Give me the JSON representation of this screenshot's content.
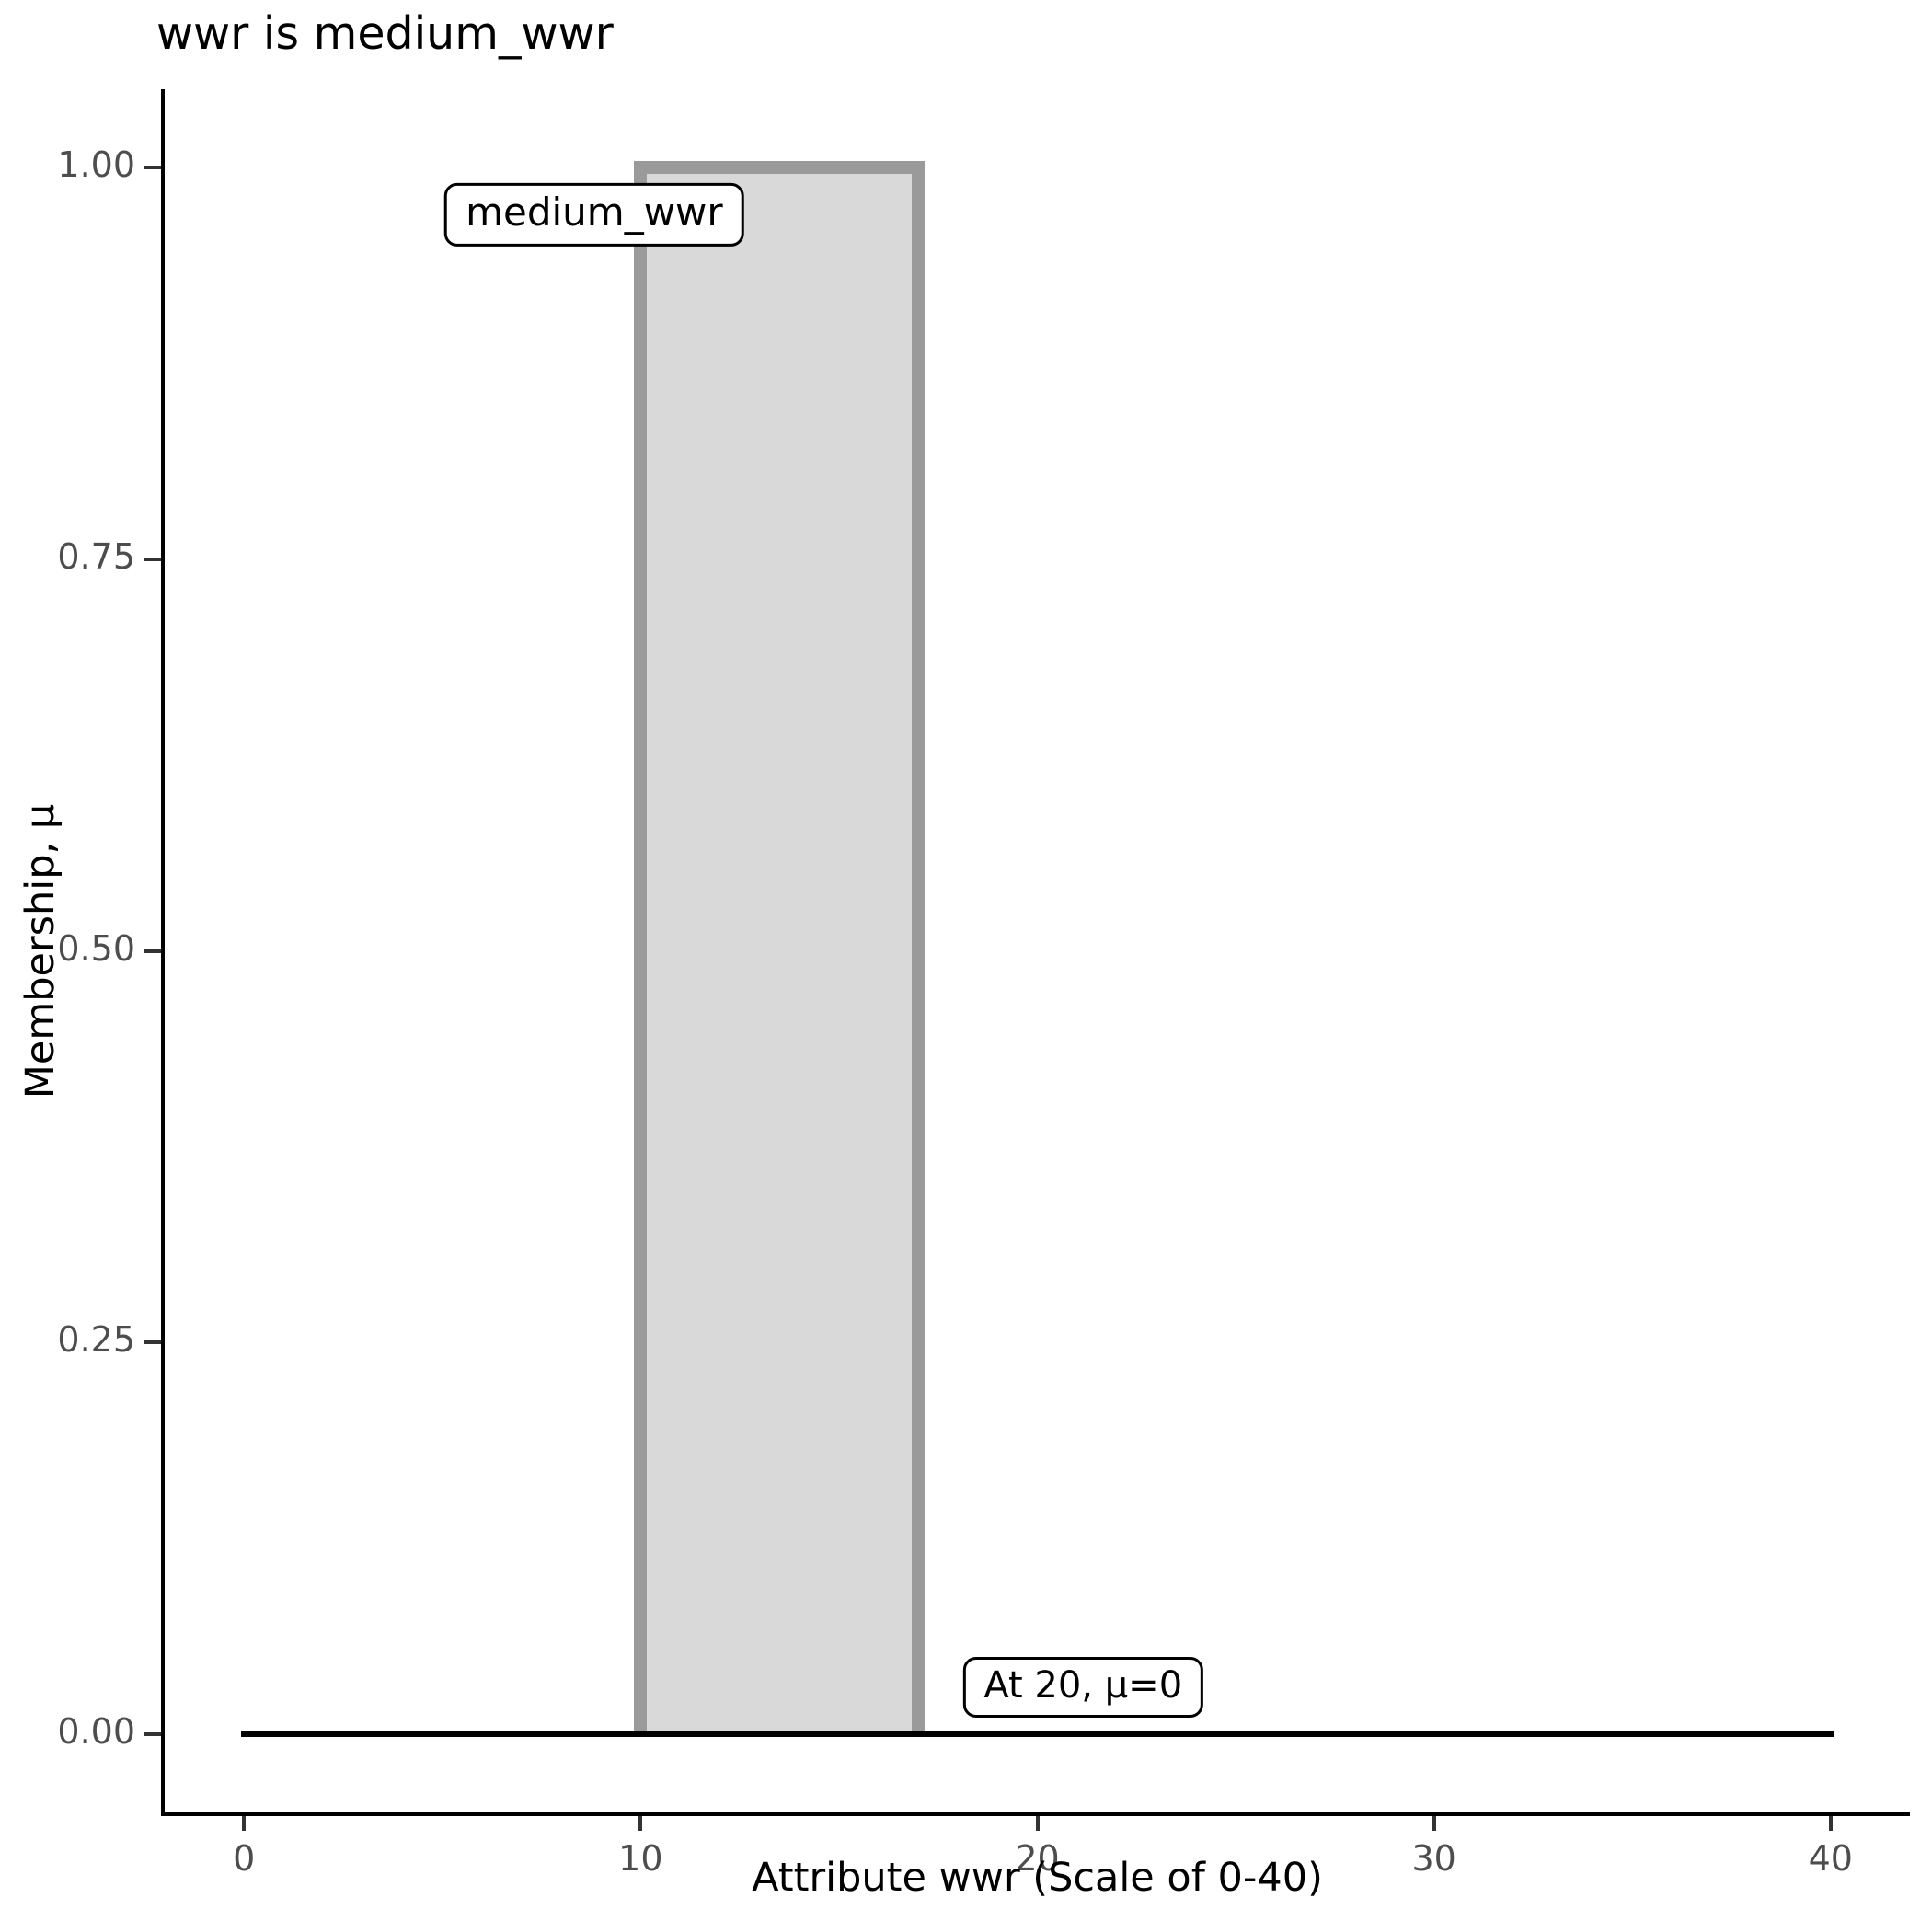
{
  "chart_data": {
    "type": "area",
    "title": "wwr is medium_wwr",
    "xlabel": "Attribute wwr (Scale of 0-40)",
    "ylabel": "Membership, μ",
    "xlim": [
      0,
      40
    ],
    "ylim": [
      0,
      1
    ],
    "x_ticks": [
      "0",
      "10",
      "20",
      "30",
      "40"
    ],
    "x_tick_values": [
      0,
      10,
      20,
      30,
      40
    ],
    "y_ticks": [
      "0.00",
      "0.25",
      "0.50",
      "0.75",
      "1.00"
    ],
    "y_tick_values": [
      0,
      0.25,
      0.5,
      0.75,
      1
    ],
    "grid": false,
    "legend": false,
    "series": [
      {
        "name": "medium_wwr",
        "kind": "rectangular_membership_function",
        "points_x_mu": [
          [
            0,
            0
          ],
          [
            10,
            0
          ],
          [
            10,
            1
          ],
          [
            17,
            1
          ],
          [
            17,
            0
          ],
          [
            40,
            0
          ]
        ],
        "rect": {
          "x_start": 10,
          "x_end": 17,
          "mu_max": 1
        },
        "fill_color": "#d9d9d9",
        "stroke_color": "#9a9a9a"
      }
    ],
    "baseline": {
      "mu": 0,
      "x_start": 0,
      "x_end": 40,
      "color": "#000000"
    },
    "annotations": [
      {
        "text": "medium_wwr",
        "x": 10,
        "mu": 0.97
      },
      {
        "text": "At 20, μ=0",
        "x": 20,
        "mu": 0.03
      }
    ],
    "colors": {
      "axis_line": "#000000",
      "tick_label": "#4d4d4d",
      "title": "#000000"
    }
  }
}
